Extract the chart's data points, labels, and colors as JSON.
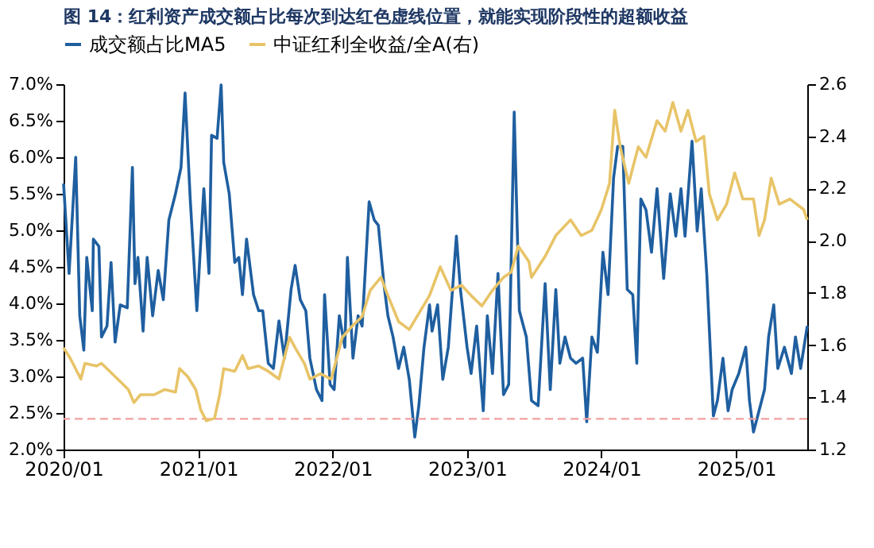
{
  "chart_data": {
    "type": "line",
    "title": "图 14：红利资产成交额占比每次到达红色虚线位置，就能实现阶段性的超额收益",
    "xlim": [
      "2020-01-01",
      "2025-07-13"
    ],
    "xticks": [
      {
        "value": "2020-01-01",
        "label": "2020/01"
      },
      {
        "value": "2021-01-01",
        "label": "2021/01"
      },
      {
        "value": "2022-01-01",
        "label": "2022/01"
      },
      {
        "value": "2023-01-01",
        "label": "2023/01"
      },
      {
        "value": "2024-01-01",
        "label": "2024/01"
      },
      {
        "value": "2025-01-01",
        "label": "2025/01"
      }
    ],
    "ylim": [
      2.0,
      7.0
    ],
    "yticks": [
      {
        "value": 2.0,
        "label": "2.0%"
      },
      {
        "value": 2.5,
        "label": "2.5%"
      },
      {
        "value": 3.0,
        "label": "3.0%"
      },
      {
        "value": 3.5,
        "label": "3.5%"
      },
      {
        "value": 4.0,
        "label": "4.0%"
      },
      {
        "value": 4.5,
        "label": "4.5%"
      },
      {
        "value": 5.0,
        "label": "5.0%"
      },
      {
        "value": 5.5,
        "label": "5.5%"
      },
      {
        "value": 6.0,
        "label": "6.0%"
      },
      {
        "value": 6.5,
        "label": "6.5%"
      },
      {
        "value": 7.0,
        "label": "7.0%"
      }
    ],
    "y2lim": [
      1.2,
      2.6
    ],
    "y2ticks": [
      {
        "value": 1.2,
        "label": "1.2"
      },
      {
        "value": 1.4,
        "label": "1.4"
      },
      {
        "value": 1.6,
        "label": "1.6"
      },
      {
        "value": 1.8,
        "label": "1.8"
      },
      {
        "value": 2.0,
        "label": "2.0"
      },
      {
        "value": 2.2,
        "label": "2.2"
      },
      {
        "value": 2.4,
        "label": "2.4"
      },
      {
        "value": 2.6,
        "label": "2.6"
      }
    ],
    "legend": "top",
    "grid": false,
    "marker": "none",
    "line_style": "solid",
    "ref_lines": [
      {
        "axis": "y",
        "value": 2.42,
        "color": "#f4a0a0",
        "line_style": "dashed"
      }
    ],
    "series": [
      {
        "name": "成交额占比MA5",
        "color": "#1f5fa0",
        "x": [
          "2020-01-01",
          "2020-01-16",
          "2020-02-03",
          "2020-02-14",
          "2020-02-25",
          "2020-03-04",
          "2020-03-19",
          "2020-03-22",
          "2020-04-06",
          "2020-04-13",
          "2020-04-28",
          "2020-05-09",
          "2020-05-20",
          "2020-06-03",
          "2020-06-22",
          "2020-07-06",
          "2020-07-13",
          "2020-07-21",
          "2020-08-04",
          "2020-08-15",
          "2020-08-30",
          "2020-09-14",
          "2020-09-28",
          "2020-10-13",
          "2020-10-31",
          "2020-11-15",
          "2020-11-26",
          "2020-12-10",
          "2020-12-28",
          "2021-01-16",
          "2021-01-30",
          "2021-02-06",
          "2021-02-21",
          "2021-03-04",
          "2021-03-11",
          "2021-03-26",
          "2021-04-10",
          "2021-04-21",
          "2021-05-01",
          "2021-05-12",
          "2021-05-31",
          "2021-06-14",
          "2021-06-25",
          "2021-07-10",
          "2021-07-24",
          "2021-08-08",
          "2021-08-23",
          "2021-09-10",
          "2021-09-21",
          "2021-10-05",
          "2021-10-20",
          "2021-10-31",
          "2021-11-18",
          "2021-12-03",
          "2021-12-10",
          "2021-12-25",
          "2022-01-05",
          "2022-01-19",
          "2022-02-03",
          "2022-02-10",
          "2022-02-25",
          "2022-03-11",
          "2022-03-22",
          "2022-04-10",
          "2022-04-24",
          "2022-05-05",
          "2022-05-20",
          "2022-05-31",
          "2022-06-14",
          "2022-06-29",
          "2022-07-13",
          "2022-07-28",
          "2022-08-12",
          "2022-08-23",
          "2022-09-06",
          "2022-09-21",
          "2022-09-28",
          "2022-10-13",
          "2022-10-27",
          "2022-11-11",
          "2022-12-03",
          "2022-12-14",
          "2023-01-01",
          "2023-01-12",
          "2023-01-27",
          "2023-02-14",
          "2023-02-25",
          "2023-03-11",
          "2023-03-26",
          "2023-04-10",
          "2023-04-24",
          "2023-05-09",
          "2023-05-23",
          "2023-06-11",
          "2023-06-25",
          "2023-07-13",
          "2023-08-01",
          "2023-08-15",
          "2023-08-30",
          "2023-09-10",
          "2023-09-24",
          "2023-10-09",
          "2023-10-24",
          "2023-11-11",
          "2023-11-22",
          "2023-12-06",
          "2023-12-21",
          "2024-01-05",
          "2024-01-19",
          "2024-02-03",
          "2024-02-14",
          "2024-02-28",
          "2024-03-11",
          "2024-03-26",
          "2024-04-06",
          "2024-04-17",
          "2024-05-01",
          "2024-05-16",
          "2024-05-31",
          "2024-06-18",
          "2024-07-06",
          "2024-07-21",
          "2024-08-04",
          "2024-08-15",
          "2024-09-03",
          "2024-09-17",
          "2024-09-28",
          "2024-10-13",
          "2024-10-31",
          "2024-11-11",
          "2024-11-26",
          "2024-12-10",
          "2024-12-21",
          "2025-01-08",
          "2025-01-27",
          "2025-02-06",
          "2025-02-17",
          "2025-03-04",
          "2025-03-19",
          "2025-03-30",
          "2025-04-13",
          "2025-04-24",
          "2025-05-12",
          "2025-05-31",
          "2025-06-11",
          "2025-06-25",
          "2025-07-13"
        ],
        "values": [
          5.64,
          4.41,
          6.0,
          3.83,
          3.36,
          4.63,
          3.9,
          4.88,
          4.78,
          3.54,
          3.69,
          4.56,
          3.47,
          3.98,
          3.94,
          5.86,
          4.27,
          4.63,
          3.62,
          4.63,
          3.83,
          4.45,
          4.05,
          5.14,
          5.5,
          5.86,
          6.88,
          5.43,
          3.9,
          5.57,
          4.41,
          6.3,
          6.26,
          6.99,
          5.93,
          5.5,
          4.56,
          4.63,
          4.12,
          4.88,
          4.12,
          3.9,
          3.9,
          3.18,
          3.11,
          3.76,
          3.25,
          4.19,
          4.52,
          4.05,
          3.9,
          3.25,
          2.82,
          2.67,
          4.12,
          2.89,
          2.82,
          3.83,
          3.4,
          4.63,
          3.25,
          3.83,
          3.69,
          5.39,
          5.14,
          5.07,
          4.27,
          3.83,
          3.54,
          3.11,
          3.4,
          2.96,
          2.17,
          2.6,
          3.4,
          3.98,
          3.62,
          3.98,
          2.96,
          3.4,
          4.92,
          4.19,
          3.4,
          3.04,
          3.69,
          2.53,
          3.83,
          3.04,
          4.41,
          2.75,
          2.89,
          6.62,
          3.9,
          3.54,
          2.67,
          2.6,
          4.27,
          2.82,
          4.19,
          3.18,
          3.54,
          3.25,
          3.18,
          3.25,
          2.38,
          3.54,
          3.33,
          4.7,
          4.12,
          5.72,
          6.15,
          6.15,
          4.19,
          4.12,
          3.18,
          5.43,
          5.28,
          4.7,
          5.57,
          4.34,
          5.5,
          4.92,
          5.57,
          4.92,
          6.22,
          4.99,
          5.57,
          4.41,
          2.46,
          2.67,
          3.25,
          2.53,
          2.82,
          3.04,
          3.4,
          2.67,
          2.24,
          2.53,
          2.82,
          3.54,
          3.98,
          3.11,
          3.4,
          3.04,
          3.54,
          3.11,
          3.69
        ]
      },
      {
        "name": "中证红利全收益/全A(右)",
        "color": "#e8c468",
        "axis": "y2",
        "x": [
          "2020-01-01",
          "2020-01-19",
          "2020-02-17",
          "2020-02-28",
          "2020-03-30",
          "2020-04-13",
          "2020-05-27",
          "2020-06-25",
          "2020-07-10",
          "2020-07-28",
          "2020-09-03",
          "2020-10-02",
          "2020-10-31",
          "2020-11-11",
          "2020-12-03",
          "2020-12-25",
          "2021-01-08",
          "2021-01-23",
          "2021-02-14",
          "2021-02-28",
          "2021-03-11",
          "2021-04-10",
          "2021-05-01",
          "2021-05-16",
          "2021-06-14",
          "2021-07-10",
          "2021-08-08",
          "2021-09-06",
          "2021-09-21",
          "2021-10-16",
          "2021-10-31",
          "2021-11-29",
          "2021-12-28",
          "2022-01-27",
          "2022-02-21",
          "2022-03-22",
          "2022-04-13",
          "2022-05-12",
          "2022-05-31",
          "2022-06-29",
          "2022-07-28",
          "2022-09-21",
          "2022-10-20",
          "2022-11-18",
          "2022-12-17",
          "2023-01-12",
          "2023-02-10",
          "2023-03-11",
          "2023-04-10",
          "2023-05-01",
          "2023-05-20",
          "2023-06-18",
          "2023-06-25",
          "2023-08-01",
          "2023-08-30",
          "2023-10-09",
          "2023-11-07",
          "2023-12-06",
          "2024-01-01",
          "2024-01-23",
          "2024-02-06",
          "2024-02-21",
          "2024-03-15",
          "2024-04-10",
          "2024-05-01",
          "2024-05-31",
          "2024-06-22",
          "2024-07-13",
          "2024-08-04",
          "2024-08-23",
          "2024-09-14",
          "2024-10-05",
          "2024-10-20",
          "2024-11-11",
          "2024-12-06",
          "2024-12-28",
          "2025-01-19",
          "2025-02-17",
          "2025-03-04",
          "2025-03-19",
          "2025-04-06",
          "2025-04-28",
          "2025-05-27",
          "2025-07-03",
          "2025-07-13"
        ],
        "values": [
          1.59,
          1.55,
          1.47,
          1.53,
          1.52,
          1.53,
          1.47,
          1.43,
          1.38,
          1.41,
          1.41,
          1.43,
          1.42,
          1.51,
          1.48,
          1.43,
          1.35,
          1.31,
          1.32,
          1.41,
          1.51,
          1.5,
          1.56,
          1.51,
          1.52,
          1.5,
          1.47,
          1.63,
          1.59,
          1.53,
          1.47,
          1.49,
          1.47,
          1.63,
          1.67,
          1.71,
          1.81,
          1.86,
          1.79,
          1.69,
          1.66,
          1.79,
          1.9,
          1.81,
          1.83,
          1.79,
          1.75,
          1.81,
          1.86,
          1.88,
          1.98,
          1.92,
          1.86,
          1.94,
          2.02,
          2.08,
          2.02,
          2.04,
          2.12,
          2.22,
          2.5,
          2.36,
          2.22,
          2.36,
          2.32,
          2.46,
          2.42,
          2.53,
          2.42,
          2.5,
          2.38,
          2.4,
          2.18,
          2.08,
          2.14,
          2.26,
          2.16,
          2.16,
          2.02,
          2.08,
          2.24,
          2.14,
          2.16,
          2.12,
          2.08
        ]
      }
    ]
  }
}
